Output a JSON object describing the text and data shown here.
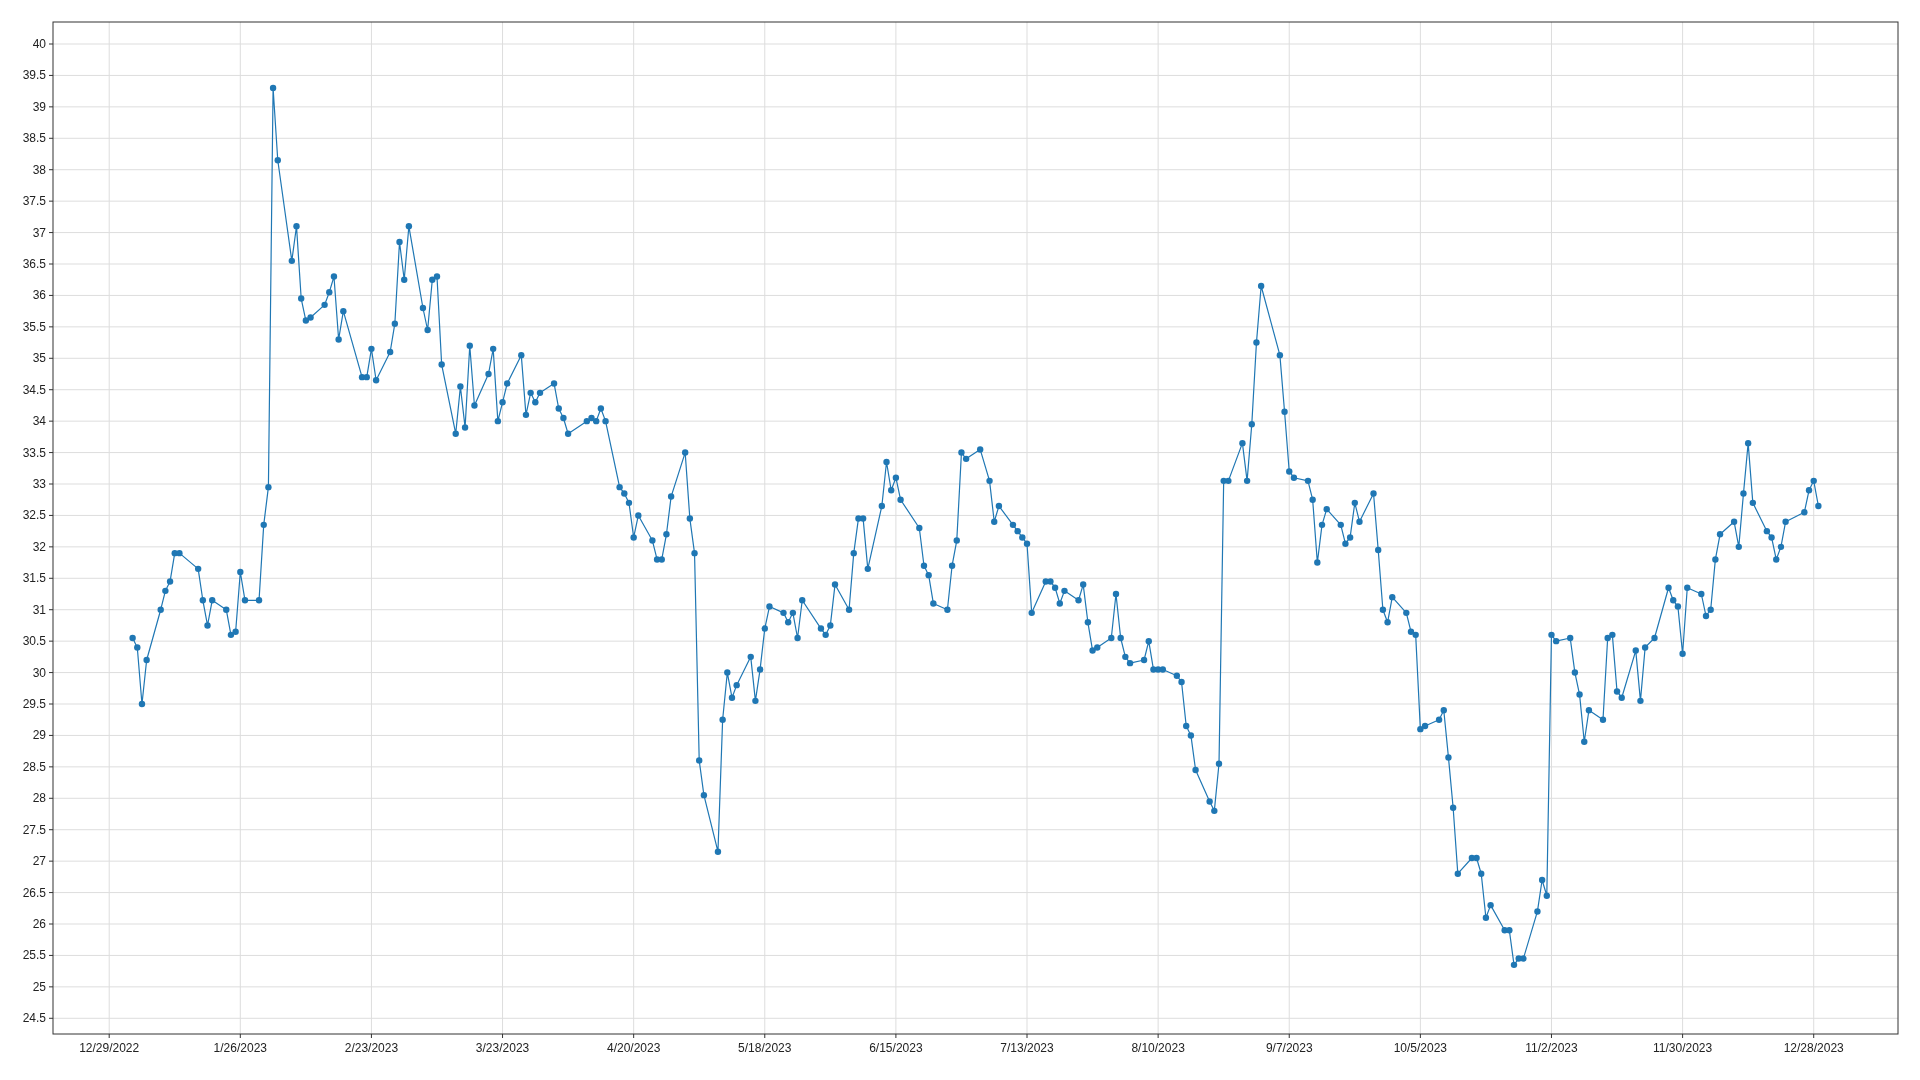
{
  "chart_data": {
    "type": "line",
    "marker": "circle",
    "grid": true,
    "xlim": [
      "2022-12-17",
      "2024-01-15"
    ],
    "ylim": [
      24.25,
      40.35
    ],
    "xticks": [
      {
        "value": "2022-12-29",
        "label": "12/29/2022"
      },
      {
        "value": "2023-01-26",
        "label": "1/26/2023"
      },
      {
        "value": "2023-02-23",
        "label": "2/23/2023"
      },
      {
        "value": "2023-03-23",
        "label": "3/23/2023"
      },
      {
        "value": "2023-04-20",
        "label": "4/20/2023"
      },
      {
        "value": "2023-05-18",
        "label": "5/18/2023"
      },
      {
        "value": "2023-06-15",
        "label": "6/15/2023"
      },
      {
        "value": "2023-07-13",
        "label": "7/13/2023"
      },
      {
        "value": "2023-08-10",
        "label": "8/10/2023"
      },
      {
        "value": "2023-09-07",
        "label": "9/7/2023"
      },
      {
        "value": "2023-10-05",
        "label": "10/5/2023"
      },
      {
        "value": "2023-11-02",
        "label": "11/2/2023"
      },
      {
        "value": "2023-11-30",
        "label": "11/30/2023"
      },
      {
        "value": "2023-12-28",
        "label": "12/28/2023"
      }
    ],
    "yticks": [
      24.5,
      25,
      25.5,
      26,
      26.5,
      27,
      27.5,
      28,
      28.5,
      29,
      29.5,
      30,
      30.5,
      31,
      31.5,
      32,
      32.5,
      33,
      33.5,
      34,
      34.5,
      35,
      35.5,
      36,
      36.5,
      37,
      37.5,
      38,
      38.5,
      39,
      39.5,
      40
    ],
    "x": [
      "2023-01-03",
      "2023-01-04",
      "2023-01-05",
      "2023-01-06",
      "2023-01-09",
      "2023-01-10",
      "2023-01-11",
      "2023-01-12",
      "2023-01-13",
      "2023-01-17",
      "2023-01-18",
      "2023-01-19",
      "2023-01-20",
      "2023-01-23",
      "2023-01-24",
      "2023-01-25",
      "2023-01-26",
      "2023-01-27",
      "2023-01-30",
      "2023-01-31",
      "2023-02-01",
      "2023-02-02",
      "2023-02-03",
      "2023-02-06",
      "2023-02-07",
      "2023-02-08",
      "2023-02-09",
      "2023-02-10",
      "2023-02-13",
      "2023-02-14",
      "2023-02-15",
      "2023-02-16",
      "2023-02-17",
      "2023-02-21",
      "2023-02-22",
      "2023-02-23",
      "2023-02-24",
      "2023-02-27",
      "2023-02-28",
      "2023-03-01",
      "2023-03-02",
      "2023-03-03",
      "2023-03-06",
      "2023-03-07",
      "2023-03-08",
      "2023-03-09",
      "2023-03-10",
      "2023-03-13",
      "2023-03-14",
      "2023-03-15",
      "2023-03-16",
      "2023-03-17",
      "2023-03-20",
      "2023-03-21",
      "2023-03-22",
      "2023-03-23",
      "2023-03-24",
      "2023-03-27",
      "2023-03-28",
      "2023-03-29",
      "2023-03-30",
      "2023-03-31",
      "2023-04-03",
      "2023-04-04",
      "2023-04-05",
      "2023-04-06",
      "2023-04-10",
      "2023-04-11",
      "2023-04-12",
      "2023-04-13",
      "2023-04-14",
      "2023-04-17",
      "2023-04-18",
      "2023-04-19",
      "2023-04-20",
      "2023-04-21",
      "2023-04-24",
      "2023-04-25",
      "2023-04-26",
      "2023-04-27",
      "2023-04-28",
      "2023-05-01",
      "2023-05-02",
      "2023-05-03",
      "2023-05-04",
      "2023-05-05",
      "2023-05-08",
      "2023-05-09",
      "2023-05-10",
      "2023-05-11",
      "2023-05-12",
      "2023-05-15",
      "2023-05-16",
      "2023-05-17",
      "2023-05-18",
      "2023-05-19",
      "2023-05-22",
      "2023-05-23",
      "2023-05-24",
      "2023-05-25",
      "2023-05-26",
      "2023-05-30",
      "2023-05-31",
      "2023-06-01",
      "2023-06-02",
      "2023-06-05",
      "2023-06-06",
      "2023-06-07",
      "2023-06-08",
      "2023-06-09",
      "2023-06-12",
      "2023-06-13",
      "2023-06-14",
      "2023-06-15",
      "2023-06-16",
      "2023-06-20",
      "2023-06-21",
      "2023-06-22",
      "2023-06-23",
      "2023-06-26",
      "2023-06-27",
      "2023-06-28",
      "2023-06-29",
      "2023-06-30",
      "2023-07-03",
      "2023-07-05",
      "2023-07-06",
      "2023-07-07",
      "2023-07-10",
      "2023-07-11",
      "2023-07-12",
      "2023-07-13",
      "2023-07-14",
      "2023-07-17",
      "2023-07-18",
      "2023-07-19",
      "2023-07-20",
      "2023-07-21",
      "2023-07-24",
      "2023-07-25",
      "2023-07-26",
      "2023-07-27",
      "2023-07-28",
      "2023-07-31",
      "2023-08-01",
      "2023-08-02",
      "2023-08-03",
      "2023-08-04",
      "2023-08-07",
      "2023-08-08",
      "2023-08-09",
      "2023-08-10",
      "2023-08-11",
      "2023-08-14",
      "2023-08-15",
      "2023-08-16",
      "2023-08-17",
      "2023-08-18",
      "2023-08-21",
      "2023-08-22",
      "2023-08-23",
      "2023-08-24",
      "2023-08-25",
      "2023-08-28",
      "2023-08-29",
      "2023-08-30",
      "2023-08-31",
      "2023-09-01",
      "2023-09-05",
      "2023-09-06",
      "2023-09-07",
      "2023-09-08",
      "2023-09-11",
      "2023-09-12",
      "2023-09-13",
      "2023-09-14",
      "2023-09-15",
      "2023-09-18",
      "2023-09-19",
      "2023-09-20",
      "2023-09-21",
      "2023-09-22",
      "2023-09-25",
      "2023-09-26",
      "2023-09-27",
      "2023-09-28",
      "2023-09-29",
      "2023-10-02",
      "2023-10-03",
      "2023-10-04",
      "2023-10-05",
      "2023-10-06",
      "2023-10-09",
      "2023-10-10",
      "2023-10-11",
      "2023-10-12",
      "2023-10-13",
      "2023-10-16",
      "2023-10-17",
      "2023-10-18",
      "2023-10-19",
      "2023-10-20",
      "2023-10-23",
      "2023-10-24",
      "2023-10-25",
      "2023-10-26",
      "2023-10-27",
      "2023-10-30",
      "2023-10-31",
      "2023-11-01",
      "2023-11-02",
      "2023-11-03",
      "2023-11-06",
      "2023-11-07",
      "2023-11-08",
      "2023-11-09",
      "2023-11-10",
      "2023-11-13",
      "2023-11-14",
      "2023-11-15",
      "2023-11-16",
      "2023-11-17",
      "2023-11-20",
      "2023-11-21",
      "2023-11-22",
      "2023-11-24",
      "2023-11-27",
      "2023-11-28",
      "2023-11-29",
      "2023-11-30",
      "2023-12-01",
      "2023-12-04",
      "2023-12-05",
      "2023-12-06",
      "2023-12-07",
      "2023-12-08",
      "2023-12-11",
      "2023-12-12",
      "2023-12-13",
      "2023-12-14",
      "2023-12-15",
      "2023-12-18",
      "2023-12-19",
      "2023-12-20",
      "2023-12-21",
      "2023-12-22",
      "2023-12-26",
      "2023-12-27",
      "2023-12-28",
      "2023-12-29"
    ],
    "series": [
      {
        "color": "#1f77b4",
        "values": [
          30.55,
          30.4,
          29.5,
          30.2,
          31.0,
          31.3,
          31.45,
          31.9,
          31.9,
          31.65,
          31.15,
          30.75,
          31.15,
          31.0,
          30.6,
          30.65,
          31.6,
          31.15,
          31.15,
          32.35,
          32.95,
          39.3,
          38.15,
          36.55,
          37.1,
          35.95,
          35.6,
          35.65,
          35.85,
          36.05,
          36.3,
          35.3,
          35.75,
          34.7,
          34.7,
          35.15,
          34.65,
          35.1,
          35.55,
          36.85,
          36.25,
          37.1,
          35.8,
          35.45,
          36.25,
          36.3,
          34.9,
          33.8,
          34.55,
          33.9,
          35.2,
          34.25,
          34.75,
          35.15,
          34.0,
          34.3,
          34.6,
          35.05,
          34.1,
          34.45,
          34.3,
          34.45,
          34.6,
          34.2,
          34.05,
          33.8,
          34.0,
          34.05,
          34.0,
          34.2,
          34.0,
          32.95,
          32.85,
          32.7,
          32.15,
          32.5,
          32.1,
          31.8,
          31.8,
          32.2,
          32.8,
          33.5,
          32.45,
          31.9,
          28.6,
          28.05,
          27.15,
          29.25,
          30.0,
          29.6,
          29.8,
          30.25,
          29.55,
          30.05,
          30.7,
          31.05,
          30.95,
          30.8,
          30.95,
          30.55,
          31.15,
          30.7,
          30.6,
          30.75,
          31.4,
          31.0,
          31.9,
          32.45,
          32.45,
          31.65,
          32.65,
          33.35,
          32.9,
          33.1,
          32.75,
          32.3,
          31.7,
          31.55,
          31.1,
          31.0,
          31.7,
          32.1,
          33.5,
          33.4,
          33.55,
          33.05,
          32.4,
          32.65,
          32.35,
          32.25,
          32.15,
          32.05,
          30.95,
          31.45,
          31.45,
          31.35,
          31.1,
          31.3,
          31.15,
          31.4,
          30.8,
          30.35,
          30.4,
          30.55,
          31.25,
          30.55,
          30.25,
          30.15,
          30.2,
          30.5,
          30.05,
          30.05,
          30.05,
          29.95,
          29.85,
          29.15,
          29.0,
          28.45,
          27.95,
          27.8,
          28.55,
          33.05,
          33.05,
          33.65,
          33.05,
          33.95,
          35.25,
          36.15,
          35.05,
          34.15,
          33.2,
          33.1,
          33.05,
          32.75,
          31.75,
          32.35,
          32.6,
          32.35,
          32.05,
          32.15,
          32.7,
          32.4,
          32.85,
          31.95,
          31.0,
          30.8,
          31.2,
          30.95,
          30.65,
          30.6,
          29.1,
          29.15,
          29.25,
          29.4,
          28.65,
          27.85,
          26.8,
          27.05,
          27.05,
          26.8,
          26.1,
          26.3,
          25.9,
          25.9,
          25.35,
          25.45,
          25.45,
          26.2,
          26.7,
          26.45,
          30.6,
          30.5,
          30.55,
          30.0,
          29.65,
          28.9,
          29.4,
          29.25,
          30.55,
          30.6,
          29.7,
          29.6,
          30.35,
          29.55,
          30.4,
          30.55,
          31.35,
          31.15,
          31.05,
          30.3,
          31.35,
          31.25,
          30.9,
          31.0,
          31.8,
          32.2,
          32.4,
          32.0,
          32.85,
          33.65,
          32.7,
          32.25,
          32.15,
          31.8,
          32.0,
          32.4,
          32.55,
          32.9,
          33.05,
          32.65
        ]
      }
    ]
  }
}
